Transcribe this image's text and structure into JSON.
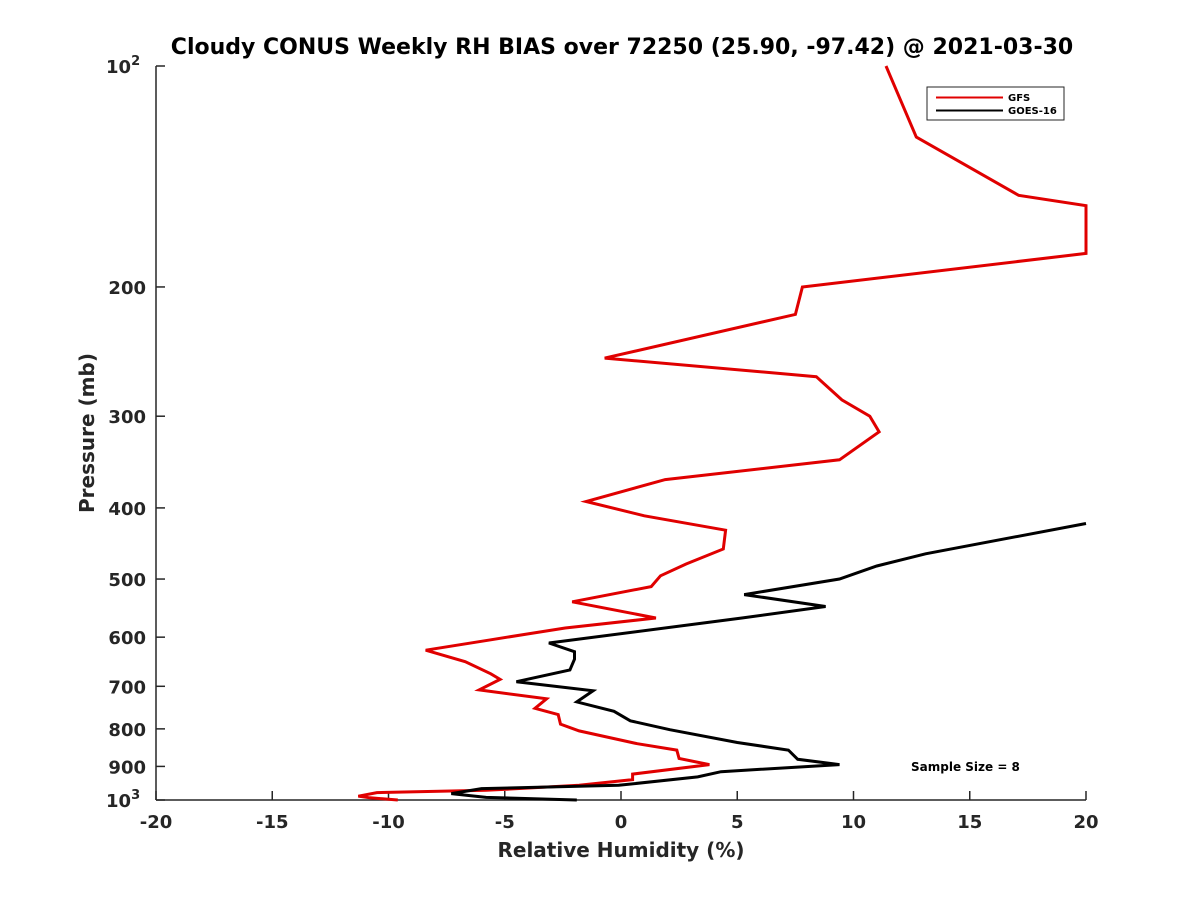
{
  "chart_data": {
    "type": "line",
    "title": "Cloudy CONUS Weekly RH BIAS over 72250 (25.90, -97.42) @ 2021-03-30",
    "xlabel": "Relative Humidity (%)",
    "ylabel": "Pressure (mb)",
    "xlim": [
      -20,
      20
    ],
    "ylim": [
      100,
      1000
    ],
    "y_scale": "log",
    "y_reversed": true,
    "grid": false,
    "legend_position": "top-right",
    "x_ticks": [
      "-20",
      "-15",
      "-10",
      "-5",
      "0",
      "5",
      "10",
      "15",
      "20"
    ],
    "y_ticks": [
      {
        "value": 100,
        "base": "10",
        "exp": "2"
      },
      {
        "value": 200,
        "label": "200"
      },
      {
        "value": 300,
        "label": "300"
      },
      {
        "value": 400,
        "label": "400"
      },
      {
        "value": 500,
        "label": "500"
      },
      {
        "value": 600,
        "label": "600"
      },
      {
        "value": 700,
        "label": "700"
      },
      {
        "value": 800,
        "label": "800"
      },
      {
        "value": 900,
        "label": "900"
      },
      {
        "value": 1000,
        "base": "10",
        "exp": "3"
      }
    ],
    "series": [
      {
        "name": "GFS",
        "color": "#e00000",
        "points": [
          [
            11.4,
            100
          ],
          [
            12.7,
            125
          ],
          [
            17.1,
            150
          ],
          [
            20.0,
            155
          ],
          [
            20.0,
            180
          ],
          [
            7.8,
            200
          ],
          [
            7.5,
            218
          ],
          [
            -0.7,
            250
          ],
          [
            8.4,
            265
          ],
          [
            9.5,
            285
          ],
          [
            10.7,
            300
          ],
          [
            11.1,
            315
          ],
          [
            9.4,
            344
          ],
          [
            1.9,
            366
          ],
          [
            -1.5,
            392
          ],
          [
            1.0,
            410
          ],
          [
            4.5,
            429
          ],
          [
            4.4,
            455
          ],
          [
            2.8,
            477
          ],
          [
            1.7,
            495
          ],
          [
            1.3,
            512
          ],
          [
            -2.1,
            537
          ],
          [
            1.5,
            565
          ],
          [
            -2.4,
            583
          ],
          [
            -5.6,
            605
          ],
          [
            -8.4,
            625
          ],
          [
            -6.7,
            648
          ],
          [
            -5.6,
            673
          ],
          [
            -5.2,
            685
          ],
          [
            -6.1,
            708
          ],
          [
            -3.2,
            728
          ],
          [
            -3.7,
            750
          ],
          [
            -2.7,
            765
          ],
          [
            -2.6,
            788
          ],
          [
            -1.8,
            805
          ],
          [
            0.7,
            838
          ],
          [
            2.4,
            855
          ],
          [
            2.5,
            878
          ],
          [
            3.8,
            895
          ],
          [
            0.5,
            922
          ],
          [
            0.5,
            938
          ],
          [
            -1.8,
            955
          ],
          [
            -5.8,
            970
          ],
          [
            -10.5,
            977
          ],
          [
            -11.3,
            988
          ],
          [
            -10.8,
            993
          ],
          [
            -9.6,
            1000
          ]
        ]
      },
      {
        "name": "GOES-16",
        "color": "#000000",
        "points": [
          [
            20.0,
            420
          ],
          [
            13.1,
            462
          ],
          [
            11.0,
            480
          ],
          [
            9.4,
            500
          ],
          [
            5.3,
            525
          ],
          [
            8.8,
            545
          ],
          [
            5.2,
            565
          ],
          [
            -3.1,
            611
          ],
          [
            -2.0,
            628
          ],
          [
            -2.0,
            643
          ],
          [
            -2.2,
            665
          ],
          [
            -4.5,
            690
          ],
          [
            -1.2,
            710
          ],
          [
            -1.9,
            735
          ],
          [
            -0.3,
            757
          ],
          [
            0.4,
            780
          ],
          [
            2.1,
            802
          ],
          [
            5.0,
            835
          ],
          [
            7.2,
            855
          ],
          [
            7.6,
            880
          ],
          [
            9.4,
            895
          ],
          [
            4.3,
            915
          ],
          [
            3.3,
            930
          ],
          [
            -0.1,
            955
          ],
          [
            -6.0,
            965
          ],
          [
            -7.3,
            980
          ],
          [
            -5.8,
            992
          ],
          [
            -1.9,
            1000
          ]
        ]
      }
    ],
    "annotations": [
      "Sample Size = 8"
    ]
  }
}
